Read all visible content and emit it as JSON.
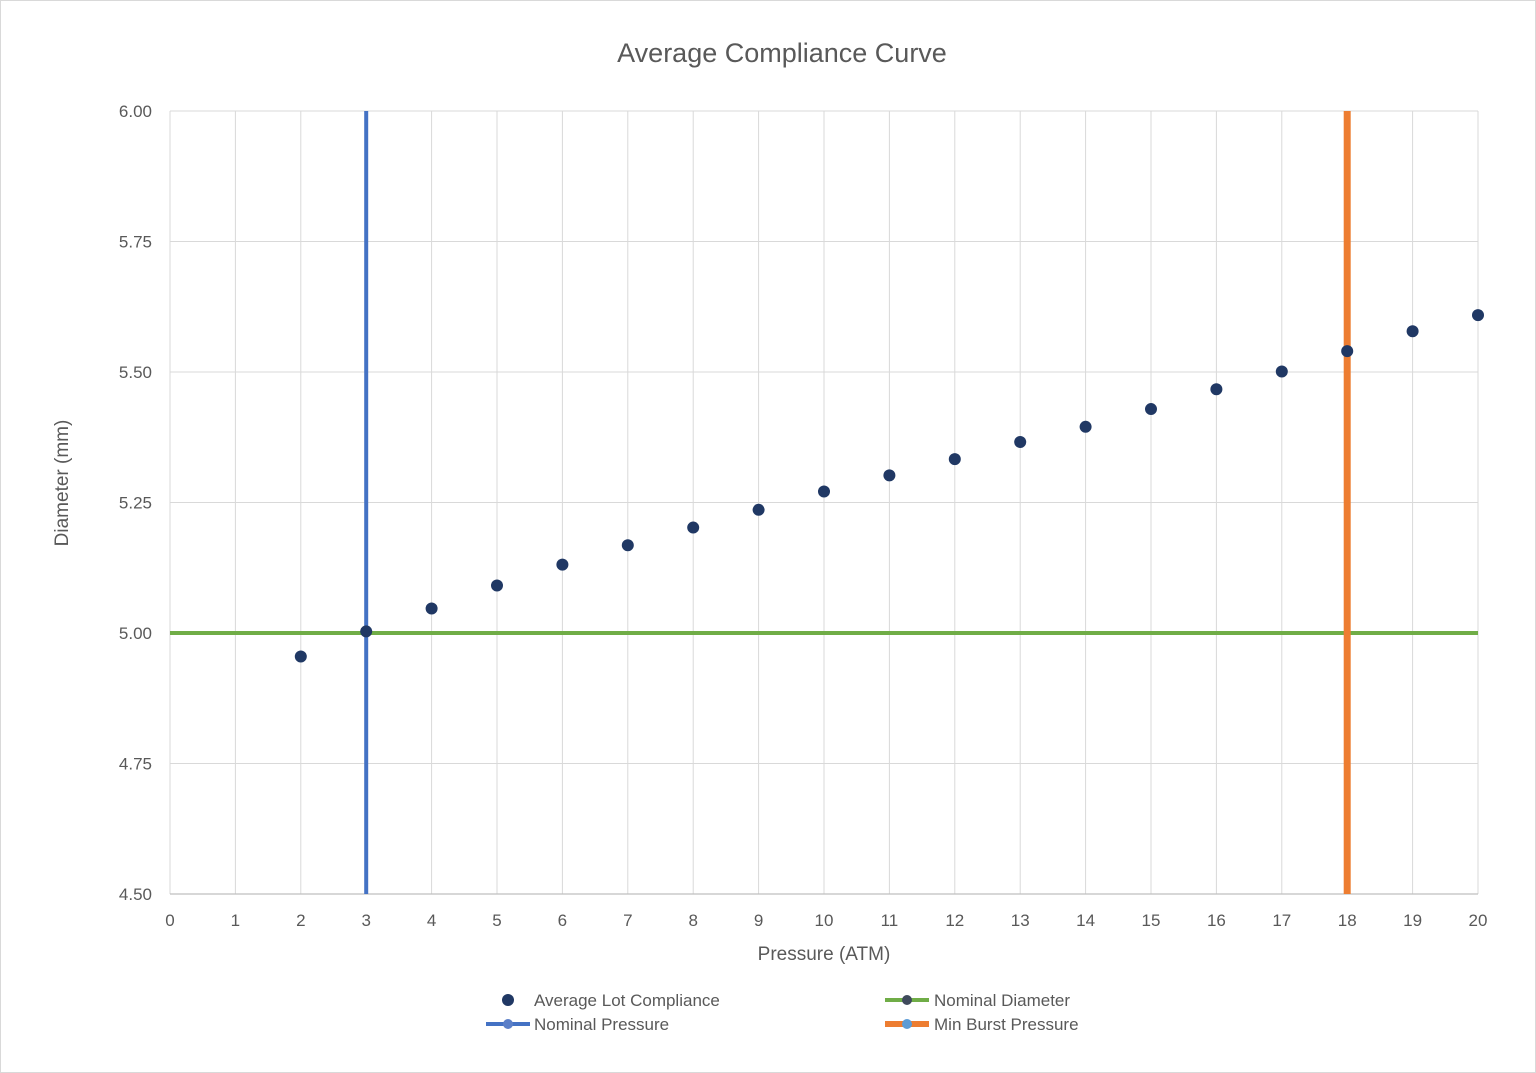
{
  "chart_data": {
    "type": "scatter",
    "title": "Average Compliance Curve",
    "xlabel": "Pressure (ATM)",
    "ylabel": "Diameter (mm)",
    "xlim": [
      0,
      20
    ],
    "ylim": [
      4.5,
      6.0
    ],
    "x_ticks": [
      "0",
      "1",
      "2",
      "3",
      "4",
      "5",
      "6",
      "7",
      "8",
      "9",
      "10",
      "11",
      "12",
      "13",
      "14",
      "15",
      "16",
      "17",
      "18",
      "19",
      "20"
    ],
    "y_ticks": [
      "4.50",
      "4.75",
      "5.00",
      "5.25",
      "5.50",
      "5.75",
      "6.00"
    ],
    "grid": true,
    "legend_position": "bottom",
    "series": [
      {
        "name": "Average Lot Compliance",
        "kind": "markers",
        "color": "#203864",
        "x": [
          2,
          3,
          4,
          5,
          6,
          7,
          8,
          9,
          10,
          11,
          12,
          13,
          14,
          15,
          16,
          17,
          18,
          19,
          20
        ],
        "y": [
          4.955,
          5.003,
          5.047,
          5.091,
          5.131,
          5.168,
          5.202,
          5.236,
          5.271,
          5.302,
          5.333,
          5.366,
          5.395,
          5.429,
          5.467,
          5.501,
          5.54,
          5.578,
          5.609
        ]
      },
      {
        "name": "Nominal Diameter",
        "kind": "hline",
        "color": "#70ad47",
        "y": 5.0
      },
      {
        "name": "Nominal Pressure",
        "kind": "vline",
        "color": "#4472c4",
        "x": 3
      },
      {
        "name": "Min Burst Pressure",
        "kind": "vline",
        "color": "#ed7d31",
        "x": 18
      }
    ]
  }
}
